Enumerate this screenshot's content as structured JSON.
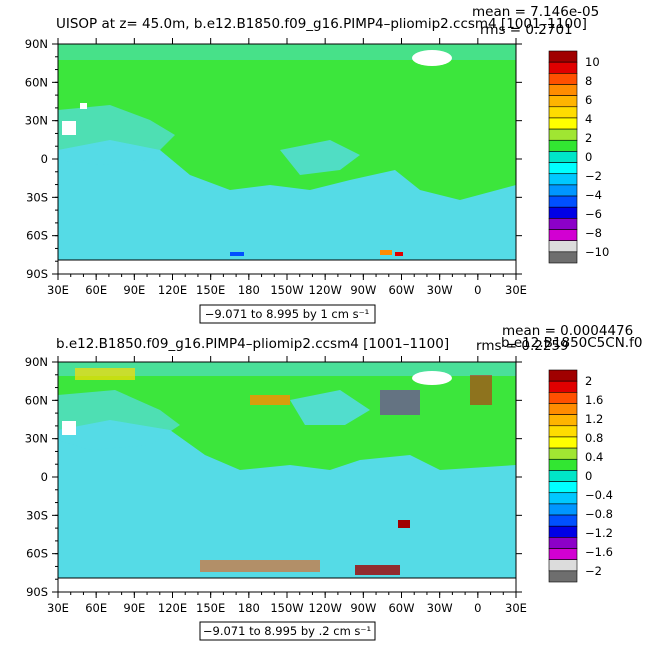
{
  "chart_data": [
    {
      "type": "heatmap",
      "title": "UISOP at z=   45.0m, b.e12.B1850.f09_g16.PIMP4–pliomip2.ccsm4 [1001–1100]",
      "stats": {
        "mean": "mean = 7.146e-05",
        "rms": "rms = 0.2701"
      },
      "xticks": [
        "30E",
        "60E",
        "90E",
        "120E",
        "150E",
        "180",
        "150W",
        "120W",
        "90W",
        "60W",
        "30W",
        "0",
        "30E"
      ],
      "yticks": [
        "90N",
        "60N",
        "30N",
        "0",
        "30S",
        "60S",
        "90S"
      ],
      "xrange": [
        30,
        390
      ],
      "yrange": [
        -90,
        90
      ],
      "colorbar": {
        "labels": [
          "10",
          "8",
          "6",
          "4",
          "2",
          "0",
          "−2",
          "−4",
          "−6",
          "−8",
          "−10"
        ],
        "colors": [
          "#a00000",
          "#e00000",
          "#ff5000",
          "#ff8c00",
          "#ffb400",
          "#ffdc00",
          "#ffff00",
          "#a0e632",
          "#32e632",
          "#00e6c8",
          "#00ffff",
          "#00c8ff",
          "#0096ff",
          "#0050ff",
          "#0000e6",
          "#8c00c8",
          "#d200d2",
          "#dcdcdc",
          "#6e6e6e"
        ]
      },
      "contour_info": "−9.071 to 8.995 by 1 cm s⁻¹"
    },
    {
      "type": "heatmap",
      "title": "b.e12.B1850.f09_g16.PIMP4–pliomip2.ccsm4 [1001–1100]",
      "title_right": "b.e12.B1850C5CN.f0",
      "stats": {
        "mean": "mean = 0.0004476",
        "rms": "rms = 0.2259"
      },
      "xticks": [
        "30E",
        "60E",
        "90E",
        "120E",
        "150E",
        "180",
        "150W",
        "120W",
        "90W",
        "60W",
        "30W",
        "0",
        "30E"
      ],
      "yticks": [
        "90N",
        "60N",
        "30N",
        "0",
        "30S",
        "60S",
        "90S"
      ],
      "xrange": [
        30,
        390
      ],
      "yrange": [
        -90,
        90
      ],
      "colorbar": {
        "labels": [
          "2",
          "1.6",
          "1.2",
          "0.8",
          "0.4",
          "0",
          "−0.4",
          "−0.8",
          "−1.2",
          "−1.6",
          "−2"
        ],
        "colors": [
          "#a00000",
          "#e00000",
          "#ff5000",
          "#ff8c00",
          "#ffb400",
          "#ffdc00",
          "#ffff00",
          "#a0e632",
          "#32e632",
          "#00e6c8",
          "#00ffff",
          "#00c8ff",
          "#0096ff",
          "#0050ff",
          "#0000e6",
          "#8c00c8",
          "#d200d2",
          "#dcdcdc",
          "#6e6e6e"
        ]
      },
      "contour_info": "−9.071 to 8.995 by .2 cm s⁻¹"
    }
  ]
}
